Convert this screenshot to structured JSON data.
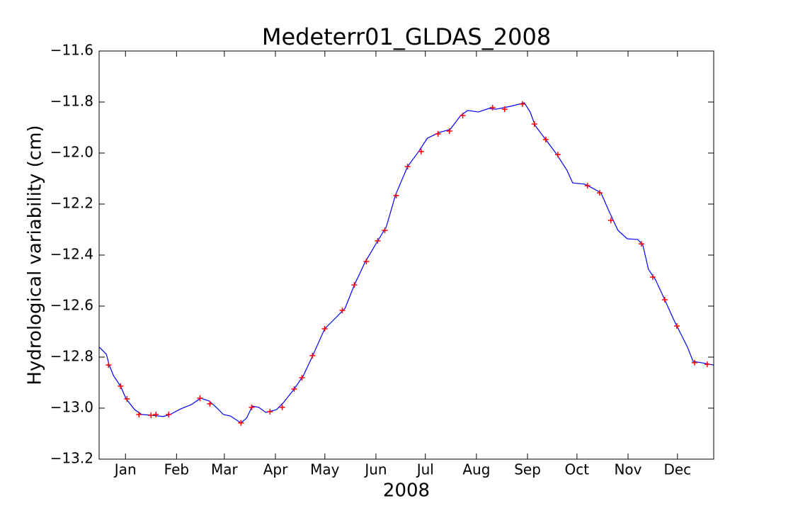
{
  "chart_data": {
    "type": "line",
    "title": "Medeterr01_GLDAS_2008",
    "x_label": "2008",
    "y_label": "Hydrological variability (cm)",
    "xlim": [
      -1,
      372
    ],
    "ylim": [
      -13.2,
      -11.6
    ],
    "xticks": [
      {
        "value": 15,
        "label": "Jan"
      },
      {
        "value": 46,
        "label": "Feb"
      },
      {
        "value": 75,
        "label": "Mar"
      },
      {
        "value": 106,
        "label": "Apr"
      },
      {
        "value": 136,
        "label": "May"
      },
      {
        "value": 167,
        "label": "Jun"
      },
      {
        "value": 197,
        "label": "Jul"
      },
      {
        "value": 228,
        "label": "Aug"
      },
      {
        "value": 259,
        "label": "Sep"
      },
      {
        "value": 289,
        "label": "Oct"
      },
      {
        "value": 320,
        "label": "Nov"
      },
      {
        "value": 350,
        "label": "Dec"
      }
    ],
    "yticks": [
      {
        "value": -13.2,
        "label": "−13.2"
      },
      {
        "value": -13.0,
        "label": "−13.0"
      },
      {
        "value": -12.8,
        "label": "−12.8"
      },
      {
        "value": -12.6,
        "label": "−12.6"
      },
      {
        "value": -12.4,
        "label": "−12.4"
      },
      {
        "value": -12.2,
        "label": "−12.2"
      },
      {
        "value": -12.0,
        "label": "−12.0"
      },
      {
        "value": -11.8,
        "label": "−11.8"
      },
      {
        "value": -11.6,
        "label": "−11.6"
      }
    ],
    "grid": false,
    "series": [
      {
        "color": "#0000ff",
        "x": [
          -0.9,
          3.4,
          5.1,
          7.7,
          12,
          15.4,
          20.6,
          24.9,
          31.3,
          37.8,
          42.1,
          48.5,
          55,
          60.6,
          65.8,
          70.1,
          74.4,
          78.7,
          85.1,
          88.5,
          92,
          95.9,
          100.2,
          106.6,
          110.9,
          117.4,
          123,
          129,
          135.9,
          143.2,
          148.3,
          153.9,
          160.4,
          166.8,
          173.3,
          178.9,
          186.2,
          192.6,
          198.2,
          205.5,
          212,
          218.4,
          222.7,
          229.2,
          235.6,
          239.9,
          248.5,
          257.1,
          260.6,
          263.6,
          270,
          276.5,
          282.9,
          286.4,
          293.7,
          298,
          303.6,
          308.8,
          313.9,
          319.5,
          326,
          329,
          332.4,
          336.7,
          342.3,
          347.5,
          351.8,
          356.1,
          359.5,
          364.7,
          372
        ],
        "values": [
          -12.761,
          -12.789,
          -12.831,
          -12.872,
          -12.914,
          -12.964,
          -13.006,
          -13.025,
          -13.028,
          -13.033,
          -13.025,
          -13.003,
          -12.986,
          -12.961,
          -12.972,
          -12.997,
          -13.025,
          -13.031,
          -13.058,
          -13.039,
          -12.992,
          -12.997,
          -13.017,
          -13.006,
          -12.978,
          -12.925,
          -12.872,
          -12.789,
          -12.689,
          -12.642,
          -12.608,
          -12.517,
          -12.428,
          -12.358,
          -12.289,
          -12.164,
          -12.053,
          -11.997,
          -11.942,
          -11.919,
          -11.908,
          -11.853,
          -11.833,
          -11.839,
          -11.825,
          -11.828,
          -11.817,
          -11.803,
          -11.839,
          -11.892,
          -11.947,
          -12.003,
          -12.067,
          -12.117,
          -12.122,
          -12.136,
          -12.156,
          -12.233,
          -12.303,
          -12.336,
          -12.339,
          -12.361,
          -12.456,
          -12.497,
          -12.575,
          -12.65,
          -12.706,
          -12.761,
          -12.817,
          -12.822,
          -12.831
        ]
      },
      {
        "color": "#ff0000",
        "marker": "+",
        "x": [
          4.7,
          12.0,
          15.9,
          23.2,
          30.5,
          33.5,
          41.2,
          60.2,
          66.2,
          85.1,
          91.6,
          102.7,
          110.1,
          117.4,
          122.1,
          128.5,
          135.9,
          146.6,
          153.9,
          161.2,
          168.1,
          172.4,
          179.3,
          186.2,
          194.4,
          204.7,
          211.6,
          219.7,
          237.8,
          245.1,
          255.9,
          263.2,
          270.1,
          277.4,
          295.4,
          302.8,
          309.6,
          328.1,
          335.0,
          342.3,
          349.6,
          360.4,
          368.1
        ],
        "values": [
          -12.831,
          -12.914,
          -12.964,
          -13.025,
          -13.028,
          -13.025,
          -13.025,
          -12.961,
          -12.983,
          -13.058,
          -12.997,
          -13.014,
          -12.997,
          -12.925,
          -12.881,
          -12.794,
          -12.689,
          -12.617,
          -12.517,
          -12.425,
          -12.344,
          -12.303,
          -12.167,
          -12.053,
          -11.994,
          -11.925,
          -11.914,
          -11.853,
          -11.822,
          -11.828,
          -11.808,
          -11.886,
          -11.947,
          -12.006,
          -12.128,
          -12.156,
          -12.264,
          -12.356,
          -12.486,
          -12.575,
          -12.678,
          -12.822,
          -12.828
        ]
      }
    ]
  }
}
